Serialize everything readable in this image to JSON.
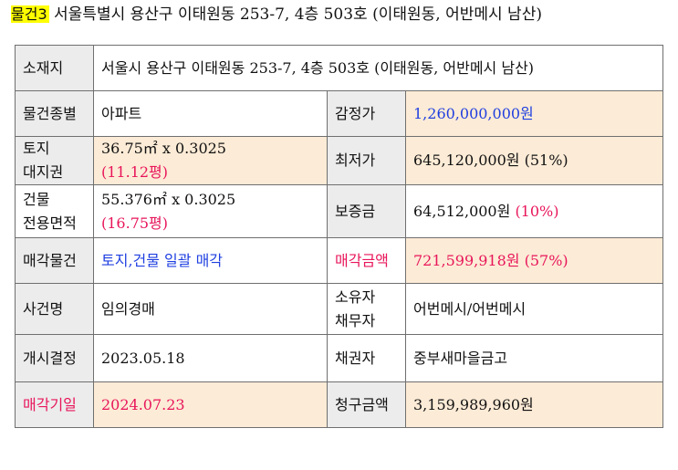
{
  "heading": {
    "tag": "물건3",
    "address": "서울특별시 용산구 이태원동 253-7, 4층 503호 (이태원동, 어반메시 남산)"
  },
  "rows": {
    "location": {
      "label": "소재지",
      "value": "서울시 용산구 이태원동 253-7, 4층 503호 (이태원동, 어반메시 남산)"
    },
    "type": {
      "label": "물건종별",
      "value": "아파트",
      "label2": "감정가",
      "value2": "1,260,000,000원"
    },
    "land": {
      "label_line1": "토지",
      "label_line2": "대지권",
      "value_line1": "36.75㎡ x 0.3025",
      "value_line2": "(11.12평)",
      "label2": "최저가",
      "value2": "645,120,000원 (51%)"
    },
    "building": {
      "label_line1": "건물",
      "label_line2": "전용면적",
      "value_line1": "55.376㎡ x 0.3025",
      "value_line2": "(16.75평)",
      "label2": "보증금",
      "value2_main": "64,512,000원",
      "value2_pct": "(10%)"
    },
    "sale_item": {
      "label": "매각물건",
      "value": "토지,건물 일괄 매각",
      "label2": "매각금액",
      "value2": "721,599,918원 (57%)"
    },
    "case": {
      "label": "사건명",
      "value": "임의경매",
      "label2_line1": "소유자",
      "label2_line2": "채무자",
      "value2": "어번메시/어번메시"
    },
    "commence": {
      "label": "개시결정",
      "value": "2023.05.18",
      "label2": "채권자",
      "value2": "중부새마을금고"
    },
    "sale_date": {
      "label": "매각기일",
      "value": "2024.07.23",
      "label2": "청구금액",
      "value2": "3,159,989,960원"
    }
  },
  "colors": {
    "label_bg": "#ececec",
    "value_bg": "#fcebd6",
    "accent_blue": "#1f3fe0",
    "accent_red": "#e8155a",
    "highlight": "#ffff00"
  }
}
